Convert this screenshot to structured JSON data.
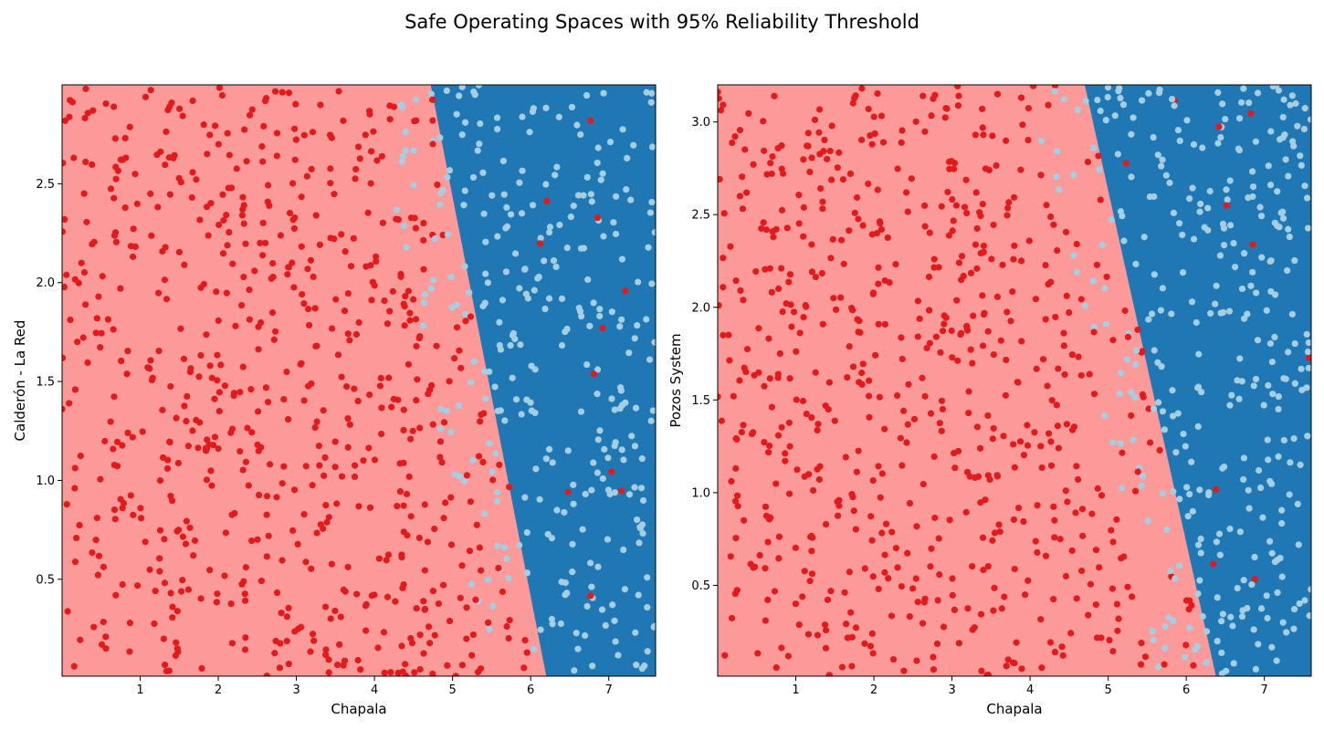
{
  "figure": {
    "title": "Safe Operating Spaces with 95% Reliability Threshold"
  },
  "colors": {
    "unsafe_region": "#fb9a99",
    "safe_region": "#1f78b4",
    "unsafe_point": "#e31a1c",
    "safe_point": "#a6cee3"
  },
  "chart_data": [
    {
      "type": "scatter",
      "title": "",
      "xlabel": "Chapala",
      "ylabel": "Calderón - La Red",
      "xlim": [
        0,
        7.6
      ],
      "ylim": [
        0.01,
        3.0
      ],
      "xticks": [
        1,
        2,
        3,
        4,
        5,
        6,
        7
      ],
      "yticks": [
        0.5,
        1.0,
        1.5,
        2.0,
        2.5
      ],
      "grid": false,
      "legend": "none",
      "decision_boundary": {
        "description": "Region left of boundary is unsafe (light red), right is safe (blue)",
        "points": [
          [
            6.2,
            0.01
          ],
          [
            4.72,
            3.0
          ]
        ]
      },
      "series": [
        {
          "class": "unsafe",
          "count_approx": 650,
          "x_range": [
            0,
            6.2
          ],
          "y_range": [
            0.01,
            3.0
          ]
        },
        {
          "class": "safe",
          "count_approx": 350,
          "x_range": [
            4.3,
            7.6
          ],
          "y_range": [
            0.01,
            3.0
          ]
        }
      ]
    },
    {
      "type": "scatter",
      "title": "",
      "xlabel": "Chapala",
      "ylabel": "Pozos System",
      "xlim": [
        0,
        7.6
      ],
      "ylim": [
        0.01,
        3.2
      ],
      "xticks": [
        1,
        2,
        3,
        4,
        5,
        6,
        7
      ],
      "yticks": [
        0.5,
        1.0,
        1.5,
        2.0,
        2.5,
        3.0
      ],
      "grid": false,
      "legend": "none",
      "decision_boundary": {
        "description": "Region left of boundary is unsafe (light red), right is safe (blue)",
        "points": [
          [
            6.38,
            0.01
          ],
          [
            4.7,
            3.2
          ]
        ]
      },
      "series": [
        {
          "class": "unsafe",
          "count_approx": 650,
          "x_range": [
            0,
            6.38
          ],
          "y_range": [
            0.01,
            3.2
          ]
        },
        {
          "class": "safe",
          "count_approx": 350,
          "x_range": [
            4.3,
            7.6
          ],
          "y_range": [
            0.01,
            3.2
          ]
        }
      ]
    }
  ]
}
